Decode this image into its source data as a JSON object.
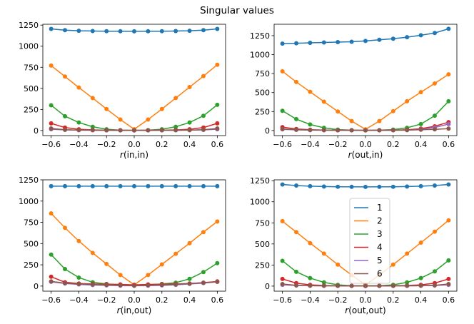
{
  "figure": {
    "title": "Singular values"
  },
  "legend": {
    "entries": [
      "1",
      "2",
      "3",
      "4",
      "5",
      "6"
    ],
    "placement": "center (bottom-right panel)"
  },
  "chart_data": [
    {
      "type": "line",
      "xlabel_prefix": "r",
      "xlabel_suffix": "(in,in)",
      "xlim": [
        -0.66,
        0.66
      ],
      "ylim": [
        -60,
        1260
      ],
      "xticks": [
        -0.6,
        -0.4,
        -0.2,
        0.0,
        0.2,
        0.4,
        0.6
      ],
      "xtick_labels": [
        "−0.6",
        "−0.4",
        "−0.2",
        "0.0",
        "0.2",
        "0.4",
        "0.6"
      ],
      "yticks": [
        0,
        250,
        500,
        750,
        1000,
        1250
      ],
      "ytick_labels": [
        "0",
        "250",
        "500",
        "750",
        "1000",
        "1250"
      ],
      "x": [
        -0.6,
        -0.5,
        -0.4,
        -0.3,
        -0.2,
        -0.1,
        0.0,
        0.1,
        0.2,
        0.3,
        0.4,
        0.5,
        0.6
      ],
      "series": [
        {
          "name": "1",
          "values": [
            1205,
            1190,
            1183,
            1180,
            1178,
            1177,
            1176,
            1177,
            1178,
            1180,
            1183,
            1190,
            1205
          ]
        },
        {
          "name": "2",
          "values": [
            770,
            640,
            510,
            385,
            255,
            130,
            15,
            130,
            255,
            385,
            515,
            645,
            780
          ]
        },
        {
          "name": "3",
          "values": [
            300,
            170,
            95,
            45,
            15,
            5,
            3,
            5,
            15,
            45,
            95,
            175,
            305
          ]
        },
        {
          "name": "4",
          "values": [
            85,
            35,
            15,
            8,
            5,
            3,
            2,
            3,
            5,
            8,
            15,
            35,
            85
          ]
        },
        {
          "name": "5",
          "values": [
            15,
            8,
            5,
            3,
            2,
            2,
            1,
            2,
            2,
            3,
            5,
            8,
            15
          ]
        },
        {
          "name": "6",
          "values": [
            25,
            10,
            6,
            4,
            3,
            2,
            1,
            2,
            3,
            4,
            6,
            10,
            25
          ]
        }
      ]
    },
    {
      "type": "line",
      "xlabel_prefix": "r",
      "xlabel_suffix": "(out,in)",
      "xlim": [
        -0.66,
        0.66
      ],
      "ylim": [
        -67,
        1400
      ],
      "xticks": [
        -0.6,
        -0.4,
        -0.2,
        0.0,
        0.2,
        0.4,
        0.6
      ],
      "xtick_labels": [
        "−0.6",
        "−0.4",
        "−0.2",
        "0.0",
        "0.2",
        "0.4",
        "0.6"
      ],
      "yticks": [
        0,
        250,
        500,
        750,
        1000,
        1250
      ],
      "ytick_labels": [
        "0",
        "250",
        "500",
        "750",
        "1000",
        "1250"
      ],
      "x": [
        -0.6,
        -0.5,
        -0.4,
        -0.3,
        -0.2,
        -0.1,
        0.0,
        0.1,
        0.2,
        0.3,
        0.4,
        0.5,
        0.6
      ],
      "series": [
        {
          "name": "1",
          "values": [
            1145,
            1150,
            1155,
            1160,
            1165,
            1170,
            1180,
            1195,
            1210,
            1230,
            1255,
            1285,
            1340
          ]
        },
        {
          "name": "2",
          "values": [
            780,
            640,
            510,
            380,
            250,
            125,
            15,
            125,
            255,
            385,
            505,
            620,
            740
          ]
        },
        {
          "name": "3",
          "values": [
            260,
            150,
            80,
            35,
            12,
            5,
            3,
            5,
            12,
            35,
            85,
            195,
            385
          ]
        },
        {
          "name": "4",
          "values": [
            45,
            20,
            10,
            6,
            4,
            3,
            2,
            3,
            5,
            10,
            25,
            55,
            110
          ]
        },
        {
          "name": "5",
          "values": [
            15,
            8,
            5,
            3,
            2,
            2,
            1,
            2,
            3,
            5,
            15,
            40,
            85
          ]
        },
        {
          "name": "6",
          "values": [
            20,
            12,
            8,
            5,
            4,
            3,
            2,
            3,
            4,
            6,
            10,
            15,
            25
          ]
        }
      ]
    },
    {
      "type": "line",
      "xlabel_prefix": "r",
      "xlabel_suffix": "(in,out)",
      "xlim": [
        -0.66,
        0.66
      ],
      "ylim": [
        -60,
        1250
      ],
      "xticks": [
        -0.6,
        -0.4,
        -0.2,
        0.0,
        0.2,
        0.4,
        0.6
      ],
      "xtick_labels": [
        "−0.6",
        "−0.4",
        "−0.2",
        "0.0",
        "0.2",
        "0.4",
        "0.6"
      ],
      "yticks": [
        0,
        250,
        500,
        750,
        1000,
        1250
      ],
      "ytick_labels": [
        "0",
        "250",
        "500",
        "750",
        "1000",
        "1250"
      ],
      "x": [
        -0.6,
        -0.5,
        -0.4,
        -0.3,
        -0.2,
        -0.1,
        0.0,
        0.1,
        0.2,
        0.3,
        0.4,
        0.5,
        0.6
      ],
      "series": [
        {
          "name": "1",
          "values": [
            1175,
            1175,
            1175,
            1175,
            1175,
            1175,
            1175,
            1175,
            1175,
            1175,
            1175,
            1175,
            1175
          ]
        },
        {
          "name": "2",
          "values": [
            855,
            685,
            530,
            390,
            260,
            130,
            15,
            130,
            255,
            380,
            505,
            635,
            760
          ]
        },
        {
          "name": "3",
          "values": [
            370,
            200,
            100,
            45,
            25,
            15,
            10,
            15,
            25,
            40,
            85,
            165,
            270
          ]
        },
        {
          "name": "4",
          "values": [
            110,
            45,
            30,
            25,
            22,
            20,
            15,
            20,
            22,
            25,
            30,
            40,
            55
          ]
        },
        {
          "name": "5",
          "values": [
            50,
            30,
            20,
            12,
            8,
            5,
            3,
            5,
            8,
            15,
            25,
            35,
            50
          ]
        },
        {
          "name": "6",
          "values": [
            55,
            35,
            25,
            20,
            15,
            10,
            5,
            10,
            15,
            20,
            30,
            40,
            50
          ]
        }
      ]
    },
    {
      "type": "line",
      "xlabel_prefix": "r",
      "xlabel_suffix": "(out,out)",
      "xlim": [
        -0.66,
        0.66
      ],
      "ylim": [
        -60,
        1260
      ],
      "xticks": [
        -0.6,
        -0.4,
        -0.2,
        0.0,
        0.2,
        0.4,
        0.6
      ],
      "xtick_labels": [
        "−0.6",
        "−0.4",
        "−0.2",
        "0.0",
        "0.2",
        "0.4",
        "0.6"
      ],
      "yticks": [
        0,
        250,
        500,
        750,
        1000,
        1250
      ],
      "ytick_labels": [
        "0",
        "250",
        "500",
        "750",
        "1000",
        "1250"
      ],
      "x": [
        -0.6,
        -0.5,
        -0.4,
        -0.3,
        -0.2,
        -0.1,
        0.0,
        0.1,
        0.2,
        0.3,
        0.4,
        0.5,
        0.6
      ],
      "series": [
        {
          "name": "1",
          "values": [
            1205,
            1192,
            1185,
            1181,
            1178,
            1177,
            1176,
            1177,
            1178,
            1181,
            1185,
            1192,
            1205
          ]
        },
        {
          "name": "2",
          "values": [
            770,
            640,
            510,
            385,
            255,
            130,
            15,
            130,
            255,
            385,
            515,
            645,
            780
          ]
        },
        {
          "name": "3",
          "values": [
            300,
            170,
            95,
            45,
            15,
            5,
            3,
            5,
            15,
            45,
            95,
            175,
            305
          ]
        },
        {
          "name": "4",
          "values": [
            85,
            35,
            15,
            8,
            5,
            3,
            2,
            3,
            5,
            8,
            15,
            35,
            85
          ]
        },
        {
          "name": "5",
          "values": [
            15,
            8,
            5,
            3,
            2,
            2,
            1,
            2,
            2,
            3,
            5,
            8,
            15
          ]
        },
        {
          "name": "6",
          "values": [
            25,
            10,
            6,
            4,
            3,
            2,
            1,
            2,
            3,
            4,
            6,
            10,
            25
          ]
        }
      ]
    }
  ],
  "colors": [
    "#1f77b4",
    "#ff7f0e",
    "#2ca02c",
    "#d62728",
    "#9467bd",
    "#8c564b"
  ]
}
